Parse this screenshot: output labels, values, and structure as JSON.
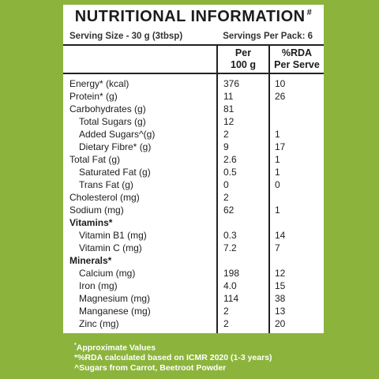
{
  "title": "NUTRITIONAL INFORMATION",
  "title_mark": "#",
  "serving": {
    "size": "Serving Size - 30 g (3tbsp)",
    "per_pack": "Servings Per Pack: 6"
  },
  "columns": {
    "per100_line1": "Per",
    "per100_line2": "100 g",
    "rda_line1": "%RDA",
    "rda_line2": "Per Serve"
  },
  "rows": [
    {
      "label": "Energy* (kcal)",
      "per100": "376",
      "rda": "10",
      "type": "item"
    },
    {
      "label": "Protein* (g)",
      "per100": "11",
      "rda": "26",
      "type": "item"
    },
    {
      "label": "Carbohydrates (g)",
      "per100": "81",
      "rda": "",
      "type": "item"
    },
    {
      "label": "Total Sugars (g)",
      "per100": "12",
      "rda": "",
      "type": "indent"
    },
    {
      "label": "Added Sugars^(g)",
      "per100": "2",
      "rda": "1",
      "type": "indent"
    },
    {
      "label": "Dietary Fibre* (g)",
      "per100": "9",
      "rda": "17",
      "type": "indent"
    },
    {
      "label": "Total Fat (g)",
      "per100": "2.6",
      "rda": "1",
      "type": "item"
    },
    {
      "label": "Saturated Fat (g)",
      "per100": "0.5",
      "rda": "1",
      "type": "indent"
    },
    {
      "label": "Trans Fat (g)",
      "per100": "0",
      "rda": "0",
      "type": "indent"
    },
    {
      "label": "Cholesterol (mg)",
      "per100": "2",
      "rda": "",
      "type": "item"
    },
    {
      "label": "Sodium (mg)",
      "per100": "62",
      "rda": "1",
      "type": "item"
    },
    {
      "label": "Vitamins*",
      "per100": "",
      "rda": "",
      "type": "section"
    },
    {
      "label": "Vitamin B1 (mg)",
      "per100": "0.3",
      "rda": "14",
      "type": "indent"
    },
    {
      "label": "Vitamin C (mg)",
      "per100": "7.2",
      "rda": "7",
      "type": "indent"
    },
    {
      "label": "Minerals*",
      "per100": "",
      "rda": "",
      "type": "section"
    },
    {
      "label": "Calcium (mg)",
      "per100": "198",
      "rda": "12",
      "type": "indent"
    },
    {
      "label": "Iron (mg)",
      "per100": "4.0",
      "rda": "15",
      "type": "indent"
    },
    {
      "label": "Magnesium (mg)",
      "per100": "114",
      "rda": "38",
      "type": "indent"
    },
    {
      "label": "Manganese (mg)",
      "per100": "2",
      "rda": "13",
      "type": "indent"
    },
    {
      "label": "Zinc (mg)",
      "per100": "2",
      "rda": "20",
      "type": "indent"
    }
  ],
  "footer": {
    "line1_mark": "*",
    "line1": "Approximate Values",
    "line2": "*%RDA calculated based on ICMR 2020 (1-3 years)",
    "line3": "^Sugars from Carrot, Beetroot Powder"
  },
  "colors": {
    "background": "#8cb43c",
    "panel": "#ffffff",
    "text": "#1c1c1c"
  }
}
